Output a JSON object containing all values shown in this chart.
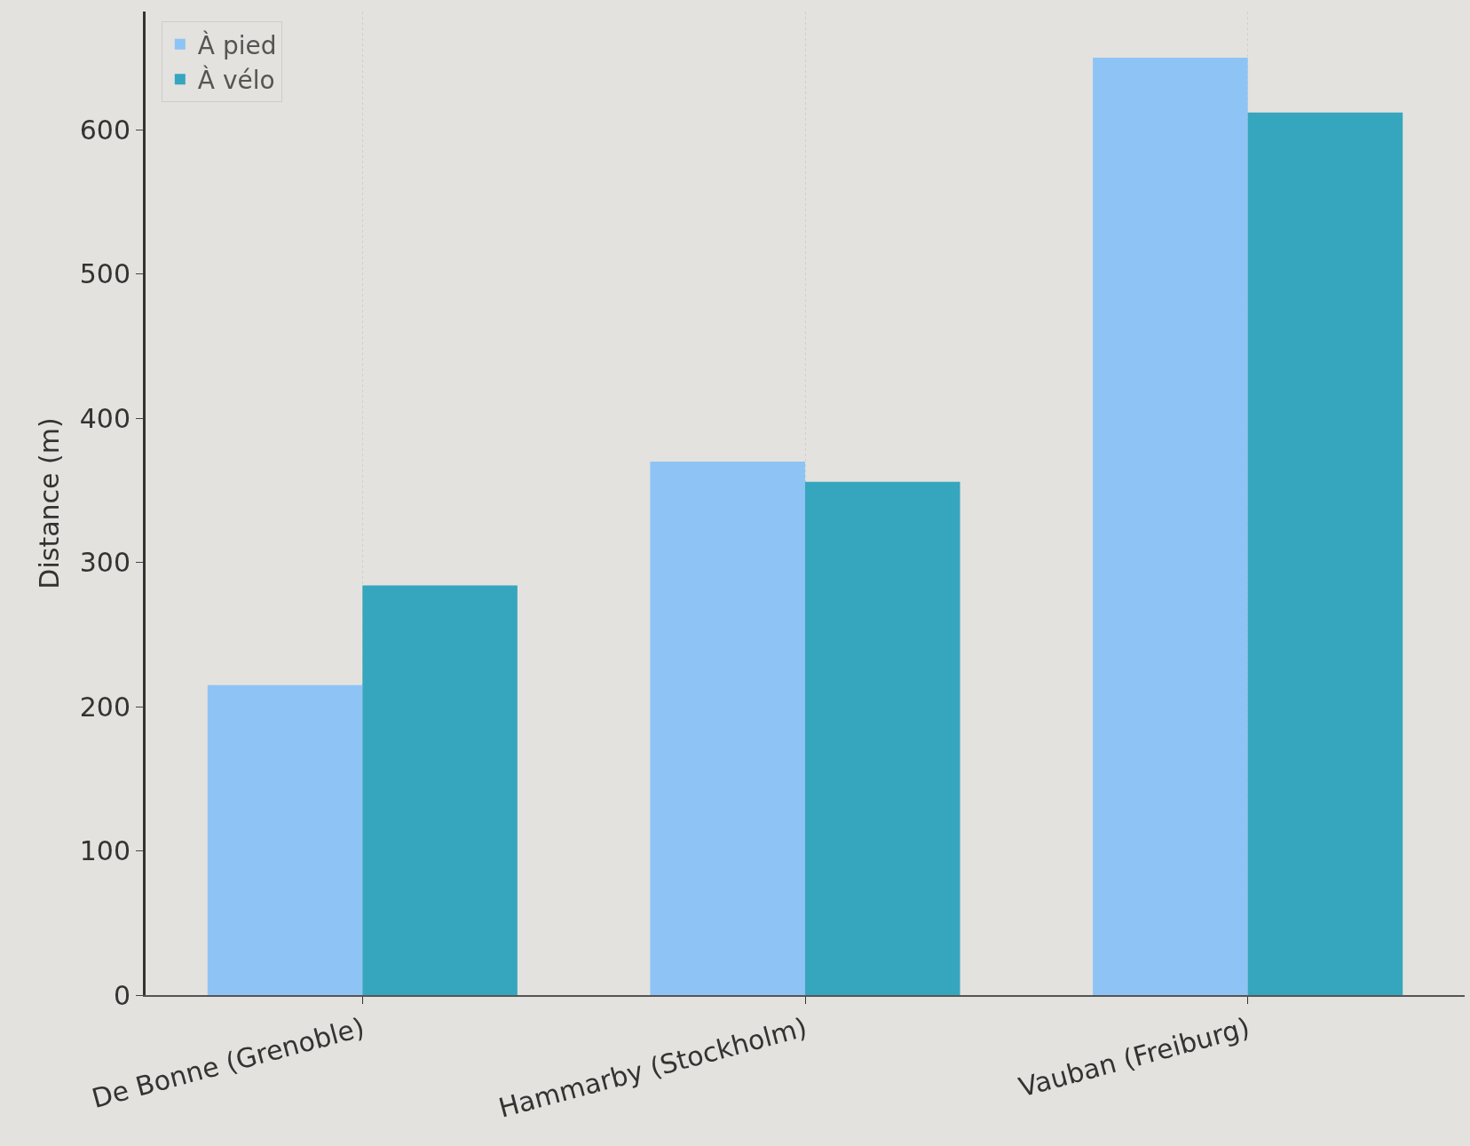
{
  "chart_data": {
    "type": "bar",
    "ylabel": "Distance (m)",
    "categories": [
      "De Bonne (Grenoble)",
      "Hammarby (Stockholm)",
      "Vauban (Freiburg)"
    ],
    "series": [
      {
        "name": "À pied",
        "color": "#8ec3f5",
        "values": [
          215,
          370,
          650
        ]
      },
      {
        "name": "À vélo",
        "color": "#36a6bf",
        "values": [
          284,
          356,
          612
        ]
      }
    ],
    "ylim": [
      0,
      682
    ],
    "yticks": [
      0,
      100,
      200,
      300,
      400,
      500,
      600
    ],
    "grid": "x",
    "legend": "top left"
  }
}
